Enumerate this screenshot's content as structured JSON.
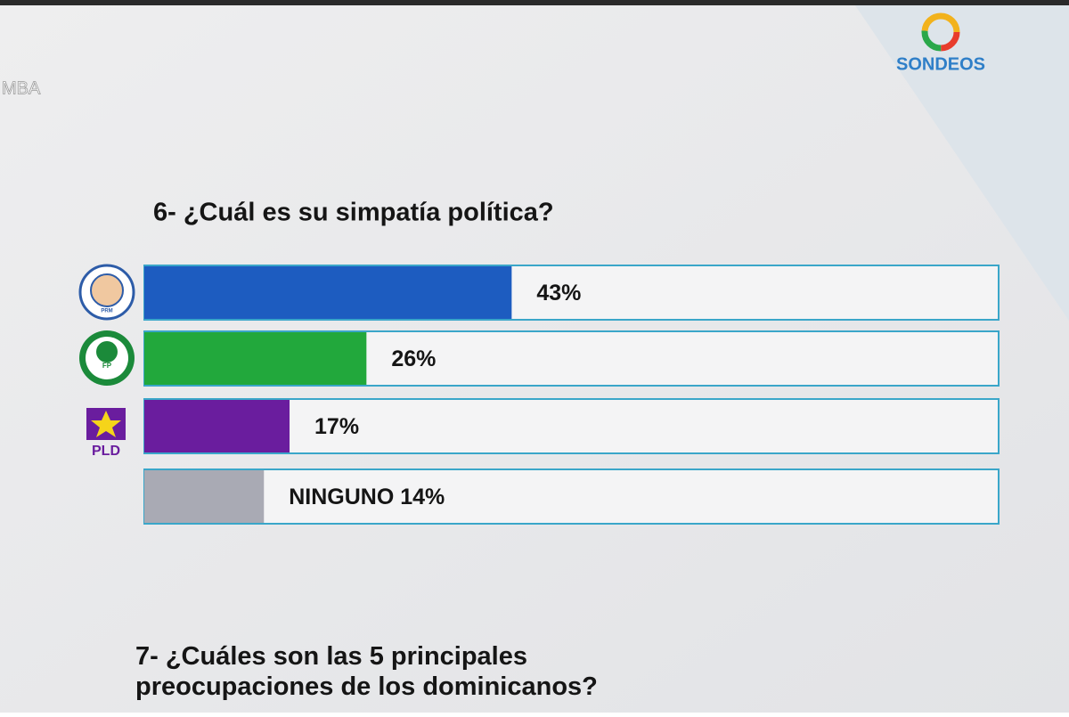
{
  "header": {
    "logo": "SONDEOS",
    "corner_text": "MBA"
  },
  "chart_data": {
    "type": "hbar",
    "title": "6- ¿Cuál es su simpatía política?",
    "categories": [
      "PRM",
      "FP",
      "PLD",
      null
    ],
    "values": [
      43,
      26,
      17,
      14
    ],
    "value_labels": [
      "43%",
      "26%",
      "17%",
      "NINGUNO 14%"
    ],
    "colors": [
      "#1d5cc0",
      "#22a83c",
      "#6a1d9e",
      "#a9aab4"
    ],
    "xlim": [
      0,
      100
    ]
  },
  "next_question": "7- ¿Cuáles son las 5 principales preocupaciones de los dominicanos?"
}
